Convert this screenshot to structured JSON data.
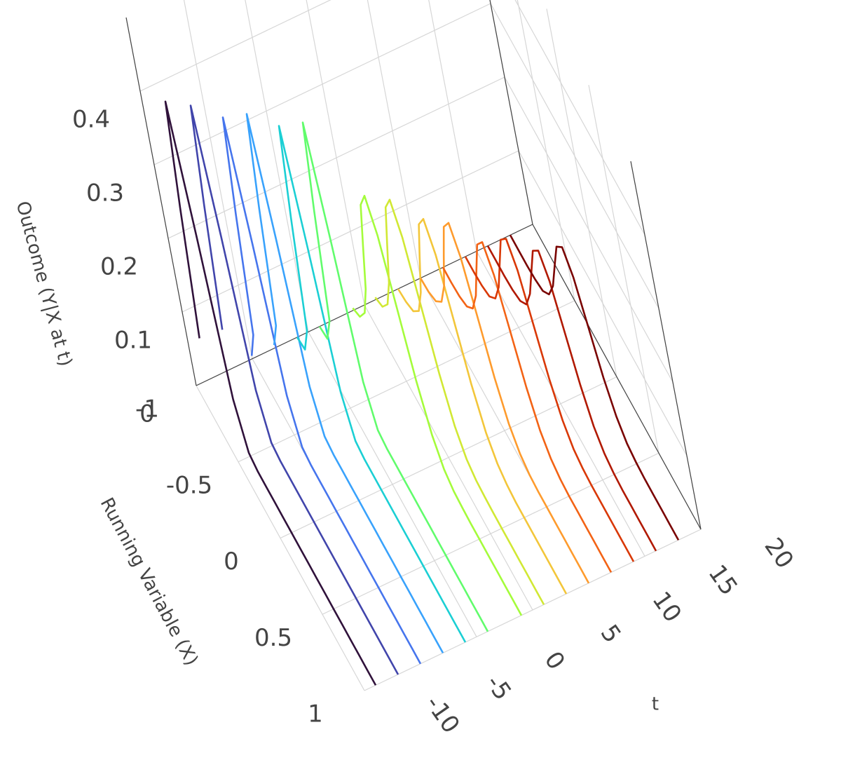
{
  "chart_data": {
    "type": "line3d",
    "x_title": "Running Variable (X)",
    "t_title": "t",
    "z_title": "Outcome (Y|X at t)",
    "xlim": [
      -1,
      1
    ],
    "xticks": [
      -1,
      -0.5,
      0,
      0.5,
      1
    ],
    "tlim": [
      -10,
      20
    ],
    "tticks": [
      -10,
      -5,
      0,
      5,
      10,
      15,
      20
    ],
    "zlim": [
      0,
      0.5
    ],
    "zticks": [
      0,
      0.1,
      0.2,
      0.3,
      0.4
    ],
    "grid": true,
    "x": [
      -1,
      -0.9,
      -0.8,
      -0.7,
      -0.6,
      -0.5,
      -0.4,
      -0.3,
      -0.2,
      -0.1,
      0,
      0.1,
      0.2,
      0.3,
      0.4,
      0.5,
      0.6,
      0.7,
      0.8,
      0.9,
      1
    ],
    "series": [
      {
        "t": -9,
        "color": "#30123b",
        "values": [
          0.057,
          0.255,
          0.42,
          0.255,
          0.057,
          0.005,
          0,
          0,
          0,
          0,
          0,
          0,
          0,
          0,
          0,
          0,
          0,
          0,
          0,
          0,
          0
        ]
      },
      {
        "t": -7,
        "color": "#4145ab",
        "values": [
          0.054,
          0.243,
          0.4,
          0.243,
          0.054,
          0.004,
          0,
          0,
          0,
          0,
          0,
          0,
          0,
          0,
          0,
          0,
          0,
          0,
          0,
          0,
          0
        ]
      },
      {
        "t": -5,
        "color": "#4675ed",
        "values": [
          0.004,
          0.053,
          0.237,
          0.39,
          0.237,
          0.053,
          0.004,
          0,
          0,
          0,
          0,
          0,
          0,
          0,
          0,
          0,
          0,
          0,
          0,
          0,
          0
        ]
      },
      {
        "t": -3,
        "color": "#39a2fc",
        "values": [
          0.004,
          0.051,
          0.231,
          0.38,
          0.231,
          0.051,
          0.004,
          0,
          0,
          0,
          0,
          0,
          0,
          0,
          0,
          0,
          0,
          0,
          0,
          0,
          0
        ]
      },
      {
        "t": -1,
        "color": "#1bcfd4",
        "values": [
          0,
          0.004,
          0.05,
          0.224,
          0.37,
          0.224,
          0.05,
          0.004,
          0,
          0,
          0,
          0,
          0,
          0,
          0,
          0,
          0,
          0,
          0,
          0,
          0
        ]
      },
      {
        "t": 1,
        "color": "#61fc6c",
        "values": [
          0,
          0.004,
          0.049,
          0.218,
          0.36,
          0.218,
          0.049,
          0.004,
          0,
          0,
          0,
          0,
          0,
          0,
          0,
          0,
          0,
          0,
          0,
          0,
          0
        ]
      },
      {
        "t": 4,
        "color": "#a4fc3b",
        "values": [
          0.003,
          0.012,
          0.038,
          0.091,
          0.17,
          0.247,
          0.28,
          0.247,
          0.17,
          0.091,
          0.038,
          0.012,
          0.003,
          0.001,
          0,
          0,
          0,
          0,
          0,
          0,
          0
        ]
      },
      {
        "t": 6,
        "color": "#d1e834",
        "values": [
          0.003,
          0.011,
          0.035,
          0.085,
          0.158,
          0.229,
          0.26,
          0.229,
          0.158,
          0.085,
          0.035,
          0.011,
          0.003,
          0.001,
          0,
          0,
          0,
          0,
          0,
          0,
          0
        ]
      },
      {
        "t": 8,
        "color": "#f3c63a",
        "values": [
          0,
          0.003,
          0.011,
          0.032,
          0.078,
          0.146,
          0.212,
          0.24,
          0.212,
          0.146,
          0.078,
          0.032,
          0.011,
          0.003,
          0,
          0,
          0,
          0,
          0,
          0,
          0
        ]
      },
      {
        "t": 10,
        "color": "#fe9b2d",
        "values": [
          0,
          0.002,
          0.01,
          0.03,
          0.072,
          0.134,
          0.194,
          0.22,
          0.194,
          0.134,
          0.072,
          0.03,
          0.01,
          0.002,
          0,
          0,
          0,
          0,
          0,
          0,
          0
        ]
      },
      {
        "t": 12,
        "color": "#f36315",
        "values": [
          0,
          0,
          0.002,
          0.009,
          0.027,
          0.065,
          0.121,
          0.176,
          0.2,
          0.176,
          0.121,
          0.065,
          0.027,
          0.009,
          0.002,
          0,
          0,
          0,
          0,
          0,
          0
        ]
      },
      {
        "t": 14,
        "color": "#d93806",
        "values": [
          0,
          0,
          0.002,
          0.008,
          0.026,
          0.062,
          0.115,
          0.168,
          0.19,
          0.168,
          0.115,
          0.062,
          0.026,
          0.008,
          0.002,
          0,
          0,
          0,
          0,
          0,
          0
        ]
      },
      {
        "t": 16,
        "color": "#b11901",
        "values": [
          0,
          0,
          0,
          0.002,
          0.008,
          0.024,
          0.059,
          0.109,
          0.159,
          0.18,
          0.159,
          0.109,
          0.059,
          0.024,
          0.008,
          0.002,
          0,
          0,
          0,
          0,
          0
        ]
      },
      {
        "t": 18,
        "color": "#7a0402",
        "values": [
          0,
          0,
          0,
          0.002,
          0.007,
          0.023,
          0.055,
          0.103,
          0.15,
          0.17,
          0.15,
          0.103,
          0.055,
          0.023,
          0.007,
          0.002,
          0,
          0,
          0,
          0,
          0
        ]
      }
    ]
  }
}
